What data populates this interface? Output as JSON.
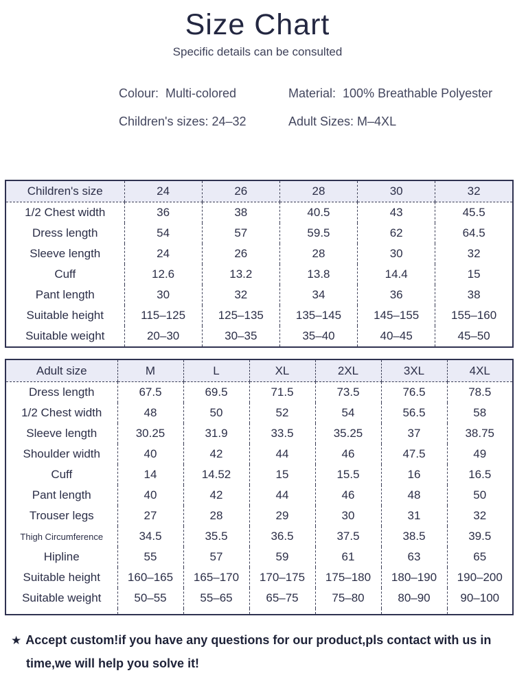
{
  "page": {
    "title": "Size Chart",
    "subtitle": "Specific details can be consulted"
  },
  "info": {
    "colour_label": "Colour:",
    "colour_value": "Multi-colored",
    "material_label": "Material:",
    "material_value": "100% Breathable Polyester",
    "children_sizes": "Children's sizes: 24–32",
    "adult_sizes": "Adult Sizes: M–4XL"
  },
  "children_table": {
    "header": [
      "Children's size",
      "24",
      "26",
      "28",
      "30",
      "32"
    ],
    "rows": [
      [
        "1/2 Chest width",
        "36",
        "38",
        "40.5",
        "43",
        "45.5"
      ],
      [
        "Dress length",
        "54",
        "57",
        "59.5",
        "62",
        "64.5"
      ],
      [
        "Sleeve length",
        "24",
        "26",
        "28",
        "30",
        "32"
      ],
      [
        "Cuff",
        "12.6",
        "13.2",
        "13.8",
        "14.4",
        "15"
      ],
      [
        "Pant length",
        "30",
        "32",
        "34",
        "36",
        "38"
      ],
      [
        "Suitable height",
        "115–125",
        "125–135",
        "135–145",
        "145–155",
        "155–160"
      ],
      [
        "Suitable weight",
        "20–30",
        "30–35",
        "35–40",
        "40–45",
        "45–50"
      ]
    ]
  },
  "adult_table": {
    "header": [
      "Adult size",
      "M",
      "L",
      "XL",
      "2XL",
      "3XL",
      "4XL"
    ],
    "rows": [
      [
        "Dress length",
        "67.5",
        "69.5",
        "71.5",
        "73.5",
        "76.5",
        "78.5"
      ],
      [
        "1/2 Chest width",
        "48",
        "50",
        "52",
        "54",
        "56.5",
        "58"
      ],
      [
        "Sleeve length",
        "30.25",
        "31.9",
        "33.5",
        "35.25",
        "37",
        "38.75"
      ],
      [
        "Shoulder width",
        "40",
        "42",
        "44",
        "46",
        "47.5",
        "49"
      ],
      [
        "Cuff",
        "14",
        "14.52",
        "15",
        "15.5",
        "16",
        "16.5"
      ],
      [
        "Pant length",
        "40",
        "42",
        "44",
        "46",
        "48",
        "50"
      ],
      [
        "Trouser legs",
        "27",
        "28",
        "29",
        "30",
        "31",
        "32"
      ],
      [
        "Thigh Circumference",
        "34.5",
        "35.5",
        "36.5",
        "37.5",
        "38.5",
        "39.5"
      ],
      [
        "Hipline",
        "55",
        "57",
        "59",
        "61",
        "63",
        "65"
      ],
      [
        "Suitable height",
        "160–165",
        "165–170",
        "170–175",
        "175–180",
        "180–190",
        "190–200"
      ],
      [
        "Suitable weight",
        "50–55",
        "55–65",
        "65–75",
        "75–80",
        "80–90",
        "90–100"
      ]
    ]
  },
  "note": {
    "star": "★",
    "line1": "Accept custom!if you have any questions for our product,pls contact with us in",
    "line2": "time,we will help you solve it!"
  },
  "colors": {
    "text": "#2b2e47",
    "header_background": "#eaebf6",
    "border": "#2e3150"
  }
}
